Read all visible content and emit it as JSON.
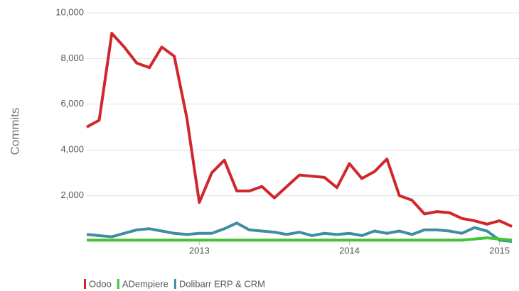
{
  "chart_data": {
    "type": "line",
    "y_label": "Commits",
    "x": [
      2012.25,
      2012.333,
      2012.417,
      2012.5,
      2012.583,
      2012.667,
      2012.75,
      2012.833,
      2012.917,
      2013.0,
      2013.083,
      2013.167,
      2013.25,
      2013.333,
      2013.417,
      2013.5,
      2013.583,
      2013.667,
      2013.75,
      2013.833,
      2013.917,
      2014.0,
      2014.083,
      2014.167,
      2014.25,
      2014.333,
      2014.417,
      2014.5,
      2014.583,
      2014.667,
      2014.75,
      2014.833,
      2014.917,
      2015.0,
      2015.083
    ],
    "series": [
      {
        "name": "Odoo",
        "color": "#d0272c",
        "values": [
          5000,
          5300,
          9100,
          8500,
          7800,
          7600,
          8500,
          8100,
          5400,
          1700,
          3000,
          3550,
          2200,
          2200,
          2400,
          1900,
          2400,
          2900,
          2850,
          2800,
          2350,
          3400,
          2750,
          3050,
          3600,
          2000,
          1800,
          1200,
          1300,
          1250,
          1000,
          900,
          750,
          900,
          650
        ]
      },
      {
        "name": "ADempiere",
        "color": "#44c336",
        "values": [
          50,
          50,
          50,
          50,
          50,
          50,
          50,
          50,
          50,
          50,
          50,
          50,
          50,
          50,
          50,
          50,
          50,
          50,
          50,
          50,
          50,
          50,
          50,
          50,
          50,
          50,
          50,
          50,
          50,
          50,
          50,
          100,
          150,
          100,
          50
        ]
      },
      {
        "name": "Dolibarr ERP & CRM",
        "color": "#3f8e9e",
        "values": [
          300,
          250,
          200,
          350,
          500,
          550,
          450,
          350,
          300,
          350,
          350,
          550,
          800,
          500,
          450,
          400,
          300,
          400,
          250,
          350,
          300,
          350,
          250,
          450,
          350,
          450,
          300,
          500,
          500,
          450,
          350,
          600,
          450,
          50,
          0
        ]
      }
    ],
    "xlim": [
      2012.25,
      2015.13
    ],
    "xticks": [
      2013,
      2014,
      2015
    ],
    "ylim": [
      0,
      10000
    ],
    "yticks": [
      {
        "value": 2000,
        "label": "2,000"
      },
      {
        "value": 4000,
        "label": "4,000"
      },
      {
        "value": 6000,
        "label": "6,000"
      },
      {
        "value": 8000,
        "label": "8,000"
      },
      {
        "value": 10000,
        "label": "10,000"
      }
    ],
    "grid": true
  }
}
